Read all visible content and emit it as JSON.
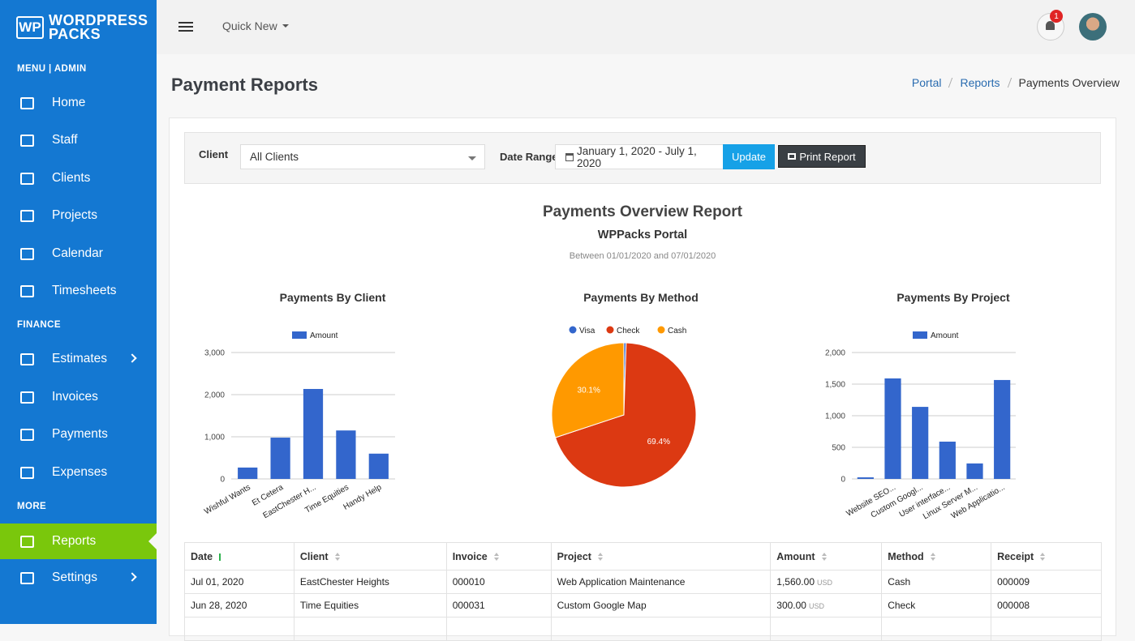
{
  "logo": {
    "mark": "WP",
    "line1": "WORDPRESS",
    "line2": "PACKS"
  },
  "sidebar": {
    "sections": [
      {
        "label": "MENU | ADMIN",
        "items": [
          {
            "label": "Home"
          },
          {
            "label": "Staff"
          },
          {
            "label": "Clients"
          },
          {
            "label": "Projects"
          },
          {
            "label": "Calendar"
          },
          {
            "label": "Timesheets"
          }
        ]
      },
      {
        "label": "FINANCE",
        "items": [
          {
            "label": "Estimates",
            "submenu": true
          },
          {
            "label": "Invoices"
          },
          {
            "label": "Payments"
          },
          {
            "label": "Expenses"
          }
        ]
      },
      {
        "label": "MORE",
        "items": [
          {
            "label": "Reports",
            "active": true
          },
          {
            "label": "Settings",
            "submenu": true
          }
        ]
      }
    ]
  },
  "header": {
    "quick_new": "Quick New",
    "notifications": "1"
  },
  "page": {
    "title": "Payment Reports",
    "breadcrumb": [
      "Portal",
      "Reports",
      "Payments Overview"
    ]
  },
  "filters": {
    "client_label": "Client",
    "client_value": "All Clients",
    "date_label": "Date Range",
    "date_value": "January 1, 2020 - July 1, 2020",
    "update": "Update",
    "print": "Print Report"
  },
  "report": {
    "title": "Payments Overview Report",
    "subtitle": "WPPacks Portal",
    "range": "Between 01/01/2020 and 07/01/2020"
  },
  "chart_data": [
    {
      "type": "bar",
      "title": "Payments By Client",
      "categories": [
        "Wishful Wants",
        "Et Cetera",
        "EastChester H...",
        "Time Equities",
        "Handy Help"
      ],
      "series": [
        {
          "name": "Amount",
          "color": "#3366cc",
          "values": [
            270,
            980,
            2135,
            1150,
            600
          ]
        }
      ],
      "ylim": [
        0,
        3000
      ],
      "yticks": [
        0,
        {
          "value": 1000,
          "label": "1,000"
        },
        {
          "value": 2000,
          "label": "2,000"
        },
        {
          "value": 3000,
          "label": "3,000"
        }
      ],
      "grid": true
    },
    {
      "type": "pie",
      "title": "Payments By Method",
      "categories": [
        "Visa",
        "Check",
        "Cash"
      ],
      "values": [
        0.5,
        69.4,
        30.1
      ],
      "value_labels": [
        null,
        "69.4%",
        "30.1%"
      ],
      "colors": [
        "#3366cc",
        "#dc3912",
        "#ff9900"
      ]
    },
    {
      "type": "bar",
      "title": "Payments By Project",
      "categories": [
        null,
        "Website SEO...",
        "Custom Googl...",
        "User interface...",
        "Linux Server M...",
        "Web Applicatio..."
      ],
      "series": [
        {
          "name": "Amount",
          "color": "#3366cc",
          "values": [
            25,
            1590,
            1140,
            590,
            245,
            1565
          ]
        }
      ],
      "ylim": [
        0,
        2000
      ],
      "yticks": [
        0,
        500,
        {
          "value": 1000,
          "label": "1,000"
        },
        {
          "value": 1500,
          "label": "1,500"
        },
        {
          "value": 2000,
          "label": "2,000"
        }
      ],
      "grid": true
    }
  ],
  "table": {
    "columns": [
      "Date",
      "Client",
      "Invoice",
      "Project",
      "Amount",
      "Method",
      "Receipt"
    ],
    "rows": [
      {
        "date": "Jul 01, 2020",
        "client": "EastChester Heights",
        "invoice": "000010",
        "project": "Web Application Maintenance",
        "amount": "1,560.00",
        "currency": "USD",
        "method": "Cash",
        "receipt": "000009"
      },
      {
        "date": "Jun 28, 2020",
        "client": "Time Equities",
        "invoice": "000031",
        "project": "Custom Google Map",
        "amount": "300.00",
        "currency": "USD",
        "method": "Check",
        "receipt": "000008"
      }
    ]
  }
}
